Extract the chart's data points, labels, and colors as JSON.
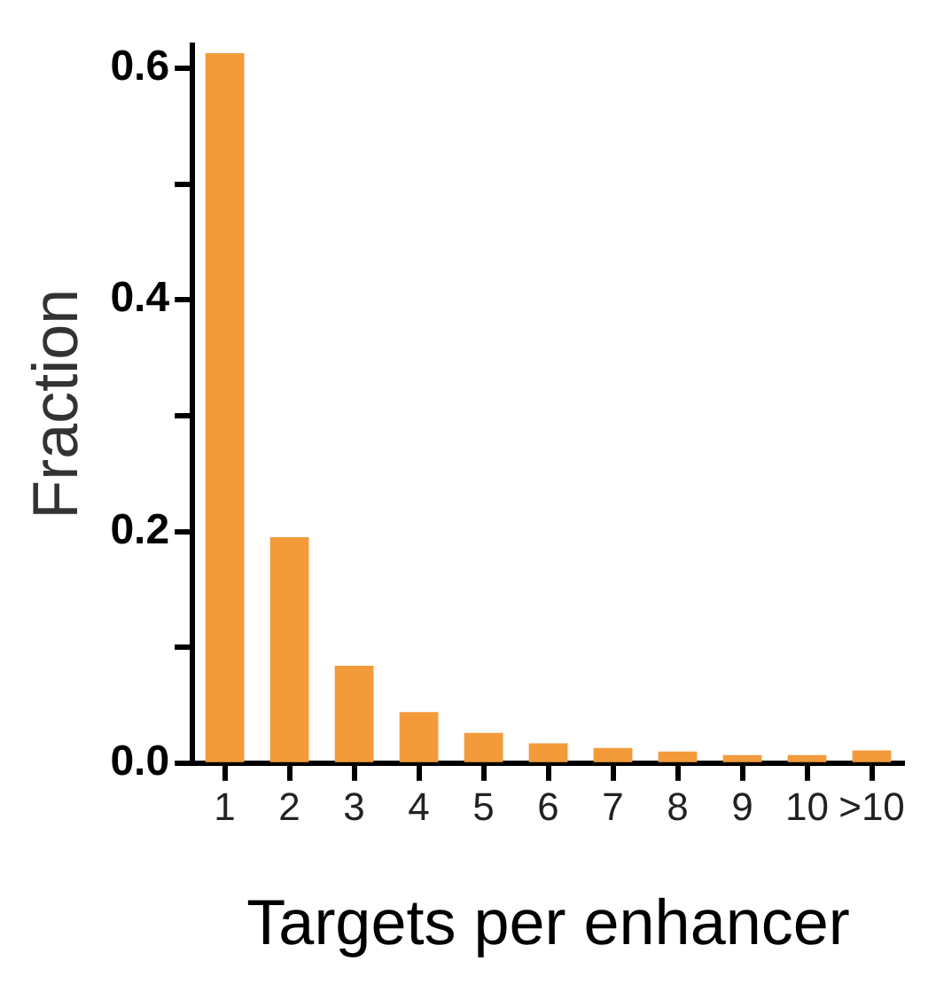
{
  "chart_data": {
    "type": "bar",
    "xlabel": "Targets per enhancer",
    "ylabel": "Fraction",
    "categories": [
      "1",
      "2",
      "3",
      "4",
      "5",
      "6",
      "7",
      "8",
      "9",
      "10",
      ">10"
    ],
    "values": [
      0.613,
      0.195,
      0.084,
      0.044,
      0.026,
      0.017,
      0.013,
      0.01,
      0.007,
      0.007,
      0.011
    ],
    "color": "#f39a3b",
    "ylim": [
      0,
      0.62
    ],
    "yticks": [
      {
        "value": 0,
        "label": "0.0"
      },
      {
        "value": 0.1,
        "label": null
      },
      {
        "value": 0.2,
        "label": "0.2"
      },
      {
        "value": 0.3,
        "label": null
      },
      {
        "value": 0.4,
        "label": "0.4"
      },
      {
        "value": 0.5,
        "label": null
      },
      {
        "value": 0.6,
        "label": "0.6"
      }
    ],
    "grid": false,
    "legend": false
  }
}
